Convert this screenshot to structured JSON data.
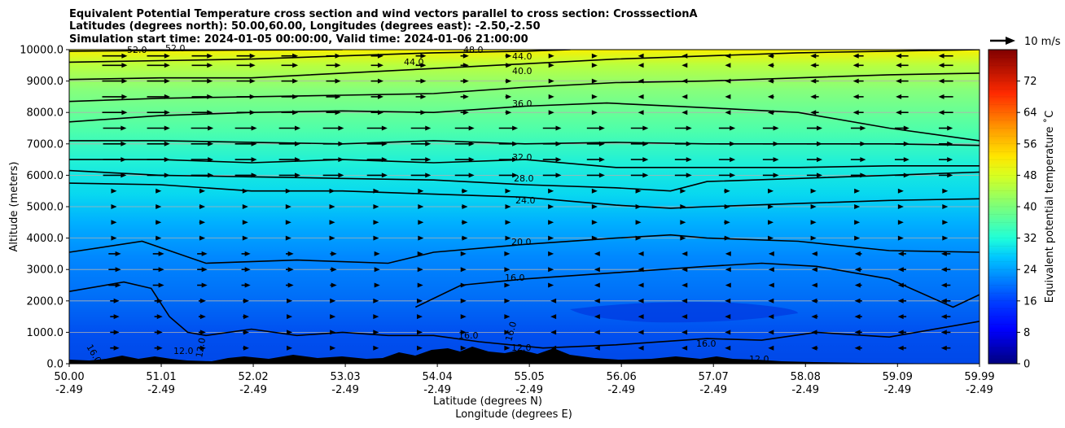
{
  "chart_data": {
    "type": "heatmap",
    "title_lines": [
      "Equivalent Potential Temperature cross section and wind vectors parallel to cross section: CrosssectionA",
      "Latitudes (degrees north): 50.00,60.00, Longitudes (degrees east): -2.50,-2.50",
      "Simulation start time: 2024-01-05 00:00:00, Valid time: 2024-01-06 21:00:00"
    ],
    "ylabel": "Altitude (meters)",
    "xlabel_lat": "Latitude (degrees N)",
    "xlabel_lon": "Longitude (degrees E)",
    "ylim": [
      0,
      10000
    ],
    "y_ticks": [
      "0.0",
      "1000.0",
      "2000.0",
      "3000.0",
      "4000.0",
      "5000.0",
      "6000.0",
      "7000.0",
      "8000.0",
      "9000.0",
      "10000.0"
    ],
    "x_ticks": [
      {
        "lat": "50.00",
        "lon": "-2.49"
      },
      {
        "lat": "51.01",
        "lon": "-2.49"
      },
      {
        "lat": "52.02",
        "lon": "-2.49"
      },
      {
        "lat": "53.03",
        "lon": "-2.49"
      },
      {
        "lat": "54.04",
        "lon": "-2.49"
      },
      {
        "lat": "55.05",
        "lon": "-2.49"
      },
      {
        "lat": "56.06",
        "lon": "-2.49"
      },
      {
        "lat": "57.07",
        "lon": "-2.49"
      },
      {
        "lat": "58.08",
        "lon": "-2.49"
      },
      {
        "lat": "59.09",
        "lon": "-2.49"
      },
      {
        "lat": "59.99",
        "lon": "-2.49"
      }
    ],
    "grid": true,
    "colorbar": {
      "label": "Equivalent potential temperature ˚C",
      "range": [
        0,
        80
      ],
      "ticks": [
        "0",
        "8",
        "16",
        "24",
        "32",
        "40",
        "48",
        "56",
        "64",
        "72"
      ]
    },
    "quiver_key": "10 m/s",
    "contour_labels": [
      "52.0",
      "52.0",
      "48.0",
      "44.0",
      "44.0",
      "40.0",
      "36.0",
      "32.0",
      "28.0",
      "24.0",
      "20.0",
      "16.0",
      "16.0",
      "16.0",
      "16.0",
      "12.0",
      "12.0",
      "12.0",
      "12.0",
      "16.0"
    ],
    "contours": [
      {
        "level": 16,
        "points": [
          [
            50.0,
            2300
          ],
          [
            50.6,
            2600
          ],
          [
            50.9,
            2400
          ],
          [
            51.1,
            1500
          ],
          [
            51.3,
            1000
          ],
          [
            51.5,
            900
          ],
          [
            52.0,
            1100
          ],
          [
            52.5,
            900
          ],
          [
            53.0,
            1000
          ],
          [
            53.5,
            900
          ],
          [
            54.0,
            900
          ],
          [
            54.5,
            700
          ],
          [
            55.2,
            500
          ],
          [
            56.0,
            600
          ],
          [
            57.0,
            800
          ],
          [
            57.6,
            750
          ],
          [
            58.2,
            1000
          ],
          [
            59.0,
            850
          ],
          [
            59.99,
            1350
          ]
        ]
      },
      {
        "level": 16,
        "points": [
          [
            53.8,
            1800
          ],
          [
            54.3,
            2500
          ],
          [
            55.0,
            2700
          ],
          [
            56.0,
            2900
          ],
          [
            57.0,
            3100
          ],
          [
            57.6,
            3200
          ],
          [
            58.2,
            3100
          ],
          [
            59.0,
            2700
          ],
          [
            59.7,
            1800
          ],
          [
            59.99,
            2200
          ]
        ]
      },
      {
        "level": 20,
        "points": [
          [
            50.0,
            3550
          ],
          [
            50.8,
            3900
          ],
          [
            51.5,
            3200
          ],
          [
            52.5,
            3300
          ],
          [
            53.5,
            3200
          ],
          [
            54.0,
            3550
          ],
          [
            55.0,
            3800
          ],
          [
            56.0,
            4000
          ],
          [
            56.6,
            4100
          ],
          [
            57.0,
            4000
          ],
          [
            58.0,
            3900
          ],
          [
            59.0,
            3600
          ],
          [
            59.99,
            3550
          ]
        ]
      },
      {
        "level": 24,
        "points": [
          [
            50.0,
            5750
          ],
          [
            51.0,
            5700
          ],
          [
            52.0,
            5500
          ],
          [
            53.0,
            5500
          ],
          [
            54.0,
            5400
          ],
          [
            55.0,
            5300
          ],
          [
            56.0,
            5050
          ],
          [
            56.6,
            4950
          ],
          [
            57.0,
            5000
          ],
          [
            58.0,
            5100
          ],
          [
            59.0,
            5200
          ],
          [
            59.99,
            5250
          ]
        ]
      },
      {
        "level": 28,
        "points": [
          [
            50.0,
            6150
          ],
          [
            51.0,
            6000
          ],
          [
            52.0,
            5950
          ],
          [
            53.0,
            5900
          ],
          [
            54.0,
            5850
          ],
          [
            55.0,
            5700
          ],
          [
            56.0,
            5600
          ],
          [
            56.6,
            5500
          ],
          [
            57.0,
            5800
          ],
          [
            58.0,
            5900
          ],
          [
            59.0,
            6000
          ],
          [
            59.99,
            6100
          ]
        ]
      },
      {
        "level": 32,
        "points": [
          [
            50.0,
            6500
          ],
          [
            51.0,
            6500
          ],
          [
            52.0,
            6400
          ],
          [
            53.0,
            6500
          ],
          [
            54.0,
            6400
          ],
          [
            55.0,
            6500
          ],
          [
            56.0,
            6250
          ],
          [
            57.0,
            6250
          ],
          [
            58.0,
            6250
          ],
          [
            59.0,
            6300
          ],
          [
            59.99,
            6300
          ]
        ]
      },
      {
        "level": 36,
        "points": [
          [
            50.0,
            7100
          ],
          [
            51.0,
            7100
          ],
          [
            52.0,
            7050
          ],
          [
            53.0,
            7000
          ],
          [
            54.0,
            7100
          ],
          [
            55.0,
            7000
          ],
          [
            56.0,
            7050
          ],
          [
            57.0,
            7000
          ],
          [
            58.0,
            7000
          ],
          [
            59.0,
            7000
          ],
          [
            59.99,
            6950
          ]
        ]
      },
      {
        "level": 36,
        "points": [
          [
            50.0,
            7700
          ],
          [
            51.0,
            7900
          ],
          [
            52.0,
            8000
          ],
          [
            53.0,
            8050
          ],
          [
            54.0,
            8000
          ],
          [
            55.0,
            8200
          ],
          [
            55.9,
            8300
          ],
          [
            57.0,
            8150
          ],
          [
            58.0,
            8000
          ],
          [
            59.0,
            7500
          ],
          [
            59.99,
            7100
          ]
        ]
      },
      {
        "level": 40,
        "points": [
          [
            50.0,
            8350
          ],
          [
            51.0,
            8450
          ],
          [
            52.0,
            8500
          ],
          [
            53.0,
            8550
          ],
          [
            54.0,
            8600
          ],
          [
            55.0,
            8800
          ],
          [
            56.0,
            8950
          ],
          [
            57.0,
            9000
          ],
          [
            58.0,
            9100
          ],
          [
            59.0,
            9200
          ],
          [
            59.99,
            9250
          ]
        ]
      },
      {
        "level": 40,
        "points": [
          [
            50.0,
            9050
          ],
          [
            51.0,
            9100
          ],
          [
            52.0,
            9100
          ],
          [
            53.0,
            9250
          ],
          [
            54.0,
            9400
          ],
          [
            55.0,
            9550
          ],
          [
            56.0,
            9700
          ],
          [
            57.0,
            9800
          ],
          [
            58.0,
            9900
          ],
          [
            59.0,
            9950
          ],
          [
            59.99,
            10000
          ]
        ]
      },
      {
        "level": 44,
        "points": [
          [
            50.0,
            9600
          ],
          [
            51.0,
            9650
          ],
          [
            52.0,
            9700
          ],
          [
            53.0,
            9800
          ],
          [
            54.0,
            9900
          ],
          [
            55.0,
            9950
          ],
          [
            55.5,
            10000
          ]
        ]
      },
      {
        "level": 48,
        "points": [
          [
            50.0,
            9950
          ],
          [
            51.0,
            9970
          ],
          [
            52.0,
            9990
          ],
          [
            53.0,
            10000
          ]
        ]
      }
    ]
  }
}
